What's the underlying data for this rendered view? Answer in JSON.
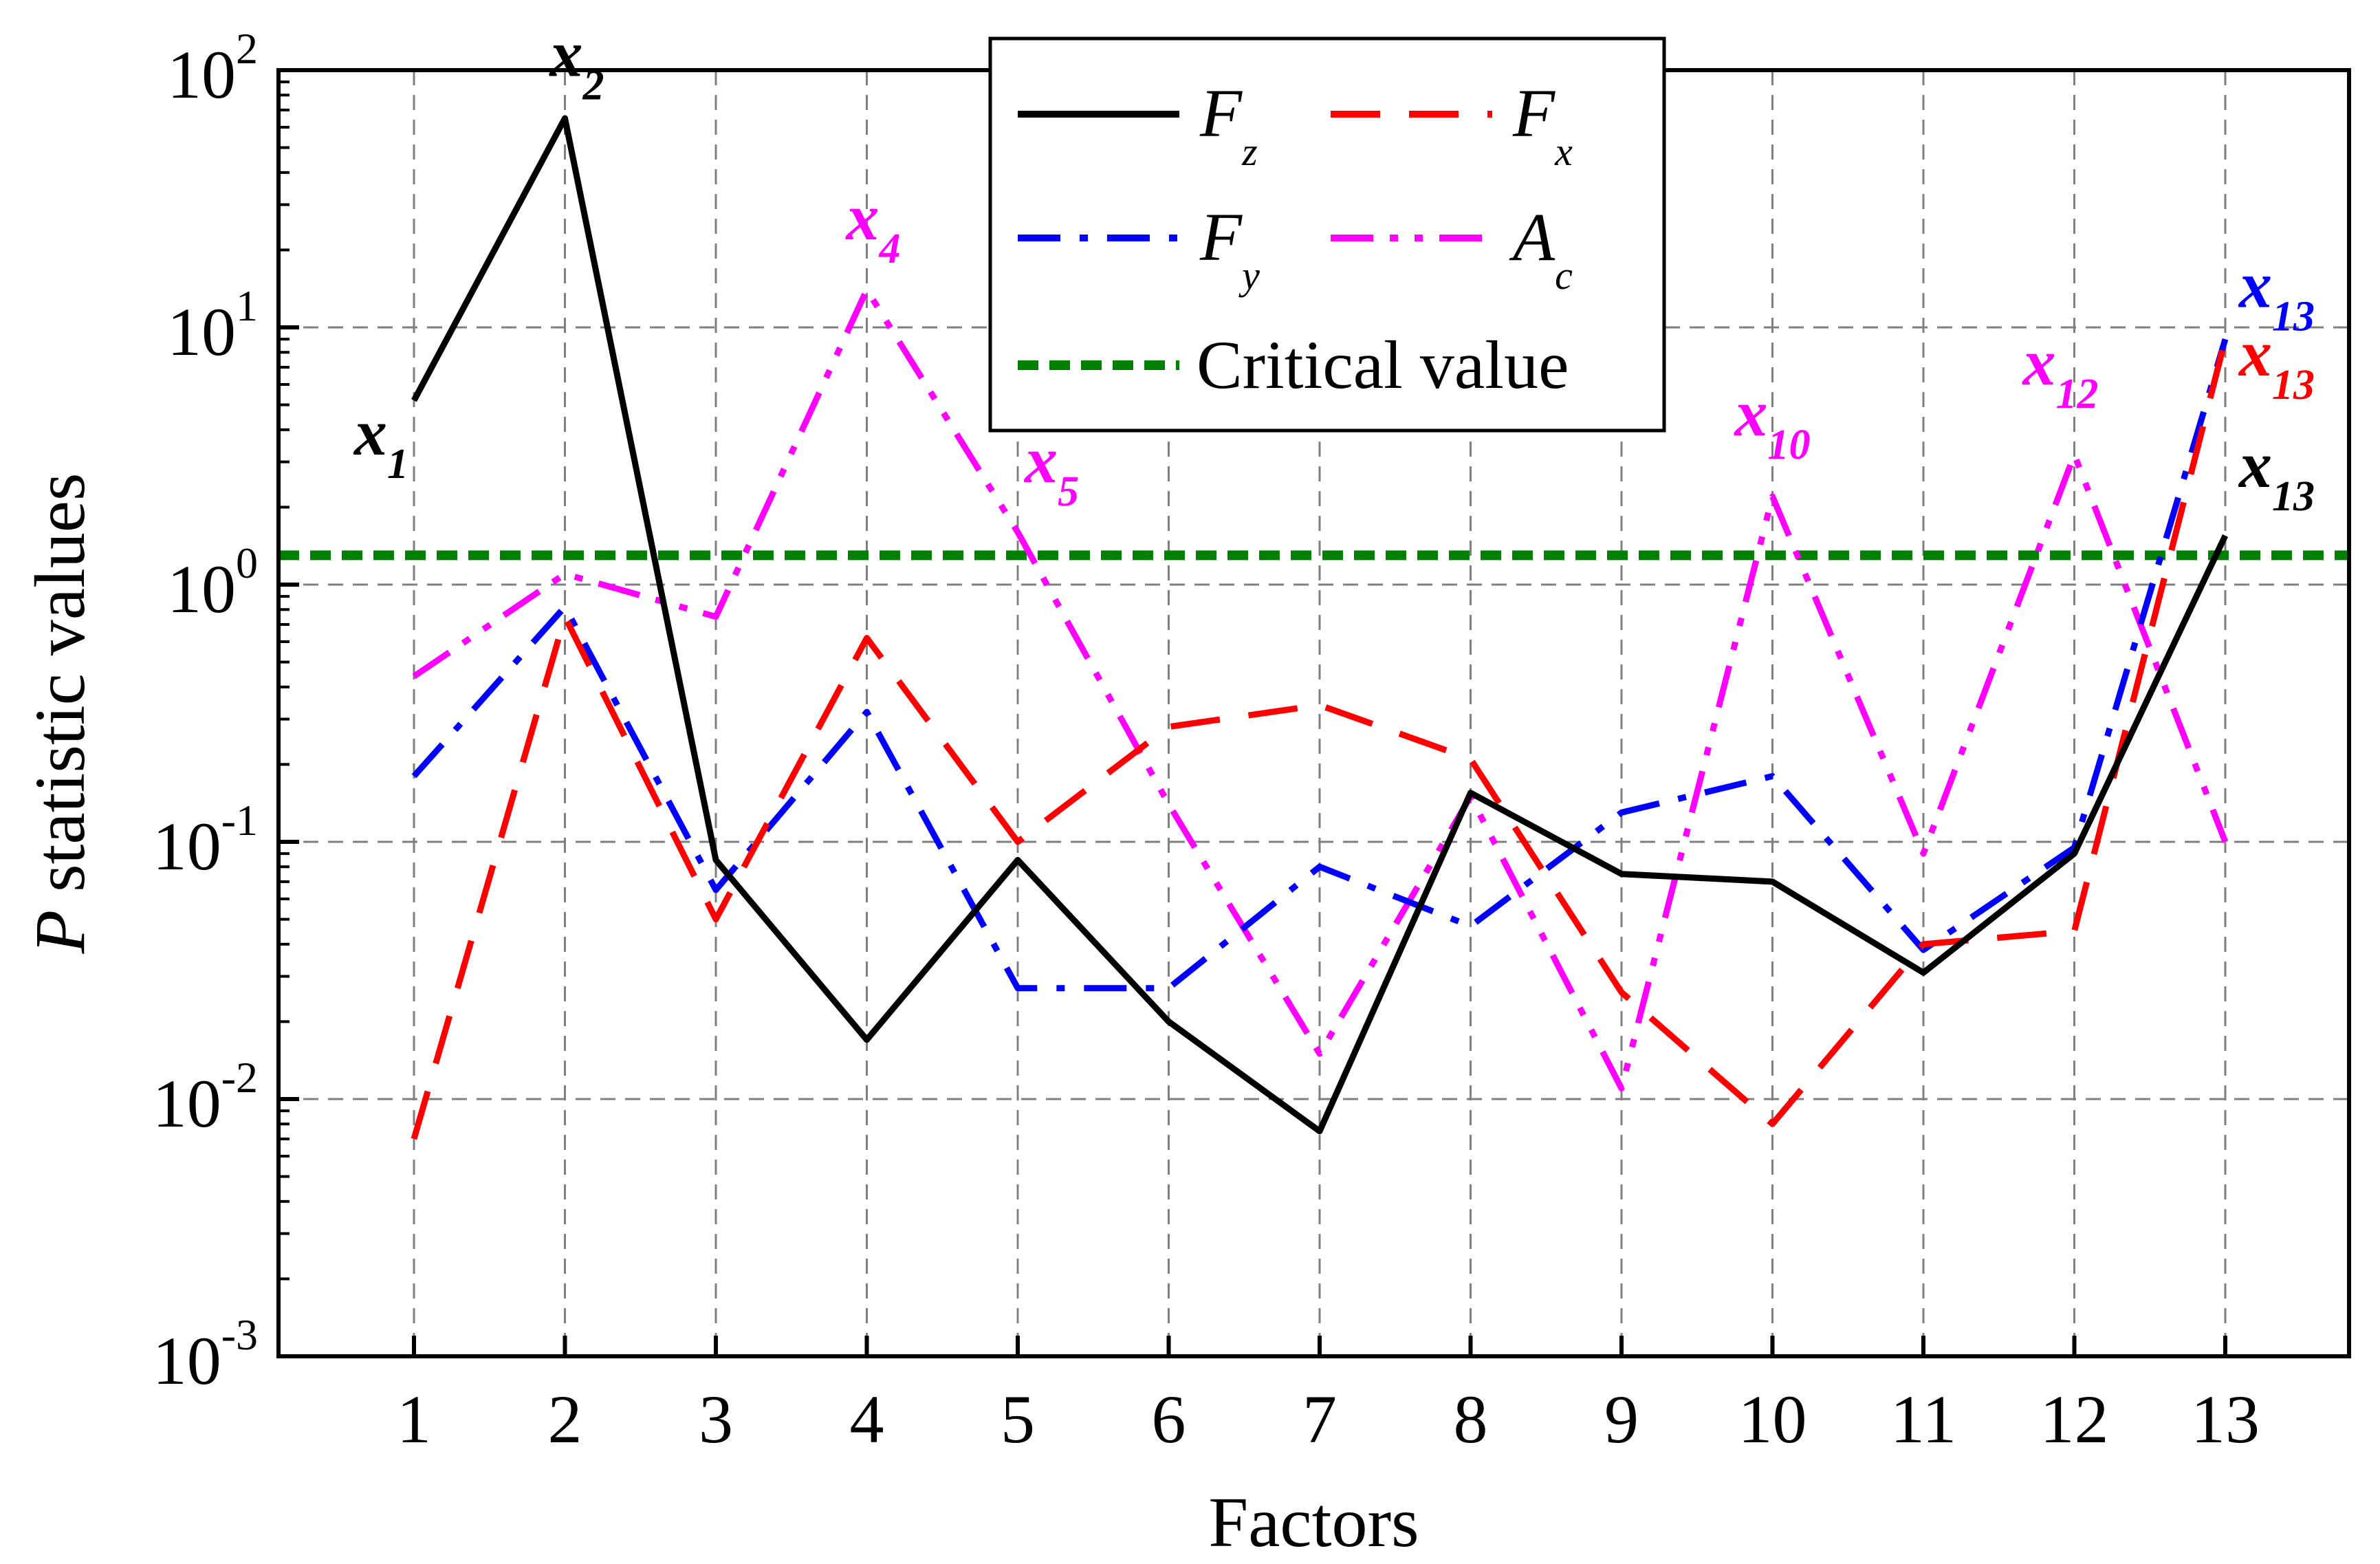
{
  "chart_data": {
    "type": "line",
    "title": "",
    "xlabel": "Factors",
    "ylabel_italic": "P",
    "ylabel_rest": " statistic values",
    "yscale": "log",
    "ylim": [
      0.001,
      100
    ],
    "yticks": [
      {
        "base": "10",
        "exp": "-3",
        "value": 0.001
      },
      {
        "base": "10",
        "exp": "-2",
        "value": 0.01
      },
      {
        "base": "10",
        "exp": "-1",
        "value": 0.1
      },
      {
        "base": "10",
        "exp": "0",
        "value": 1
      },
      {
        "base": "10",
        "exp": "1",
        "value": 10
      },
      {
        "base": "10",
        "exp": "2",
        "value": 100
      }
    ],
    "x": [
      "1",
      "2",
      "3",
      "4",
      "5",
      "6",
      "7",
      "8",
      "9",
      "10",
      "11",
      "12",
      "13"
    ],
    "grid": true,
    "legend_position": "top-center",
    "series": [
      {
        "name": "F",
        "sub": "z",
        "color": "#000000",
        "dash": "solid",
        "values": [
          5.2,
          65,
          0.085,
          0.017,
          0.085,
          0.02,
          0.0075,
          0.155,
          0.075,
          0.07,
          0.031,
          0.09,
          1.55
        ]
      },
      {
        "name": "F",
        "sub": "x",
        "color": "#ff0000",
        "dash": "dash",
        "values": [
          0.007,
          0.75,
          0.05,
          0.62,
          0.1,
          0.28,
          0.34,
          0.21,
          0.026,
          0.008,
          0.04,
          0.045,
          9.0
        ]
      },
      {
        "name": "F",
        "sub": "y",
        "color": "#0000ff",
        "dash": "dashdot",
        "values": [
          0.18,
          0.82,
          0.065,
          0.32,
          0.027,
          0.027,
          0.08,
          0.047,
          0.13,
          0.18,
          0.038,
          0.095,
          9.0
        ]
      },
      {
        "name": "A",
        "sub": "c",
        "color": "#ff00ff",
        "dash": "dashdotdot",
        "values": [
          0.44,
          1.1,
          0.75,
          14,
          1.6,
          0.14,
          0.015,
          0.15,
          0.011,
          2.2,
          0.09,
          3.2,
          0.1
        ]
      }
    ],
    "critical": {
      "name": "Critical value",
      "value": 1.3,
      "color": "#008000"
    },
    "annotations": [
      {
        "base": "x",
        "sub": "1",
        "color": "#000000",
        "x_factor": 1,
        "y_value": 3.2,
        "anchor": "end",
        "dx": -8
      },
      {
        "base": "x",
        "sub": "2",
        "color": "#000000",
        "x_factor": 2,
        "y_value": 95,
        "anchor": "start",
        "dx": -22
      },
      {
        "base": "x",
        "sub": "4",
        "color": "#ff00ff",
        "x_factor": 4,
        "y_value": 22,
        "anchor": "start",
        "dx": -30
      },
      {
        "base": "x",
        "sub": "5",
        "color": "#ff00ff",
        "x_factor": 5,
        "y_value": 2.5,
        "anchor": "start",
        "dx": 10
      },
      {
        "base": "x",
        "sub": "10",
        "color": "#ff00ff",
        "x_factor": 10,
        "y_value": 3.8,
        "anchor": "start",
        "dx": -55
      },
      {
        "base": "x",
        "sub": "12",
        "color": "#ff00ff",
        "x_factor": 12,
        "y_value": 6.0,
        "anchor": "start",
        "dx": -75
      },
      {
        "base": "x",
        "sub": "13",
        "color": "#0000ff",
        "x_factor": 13,
        "y_value": 12,
        "anchor": "start",
        "dx": 20
      },
      {
        "base": "x",
        "sub": "13",
        "color": "#ff0000",
        "x_factor": 13,
        "y_value": 6.5,
        "anchor": "start",
        "dx": 20
      },
      {
        "base": "x",
        "sub": "13",
        "color": "#000000",
        "x_factor": 13,
        "y_value": 2.4,
        "anchor": "start",
        "dx": 20
      }
    ]
  }
}
